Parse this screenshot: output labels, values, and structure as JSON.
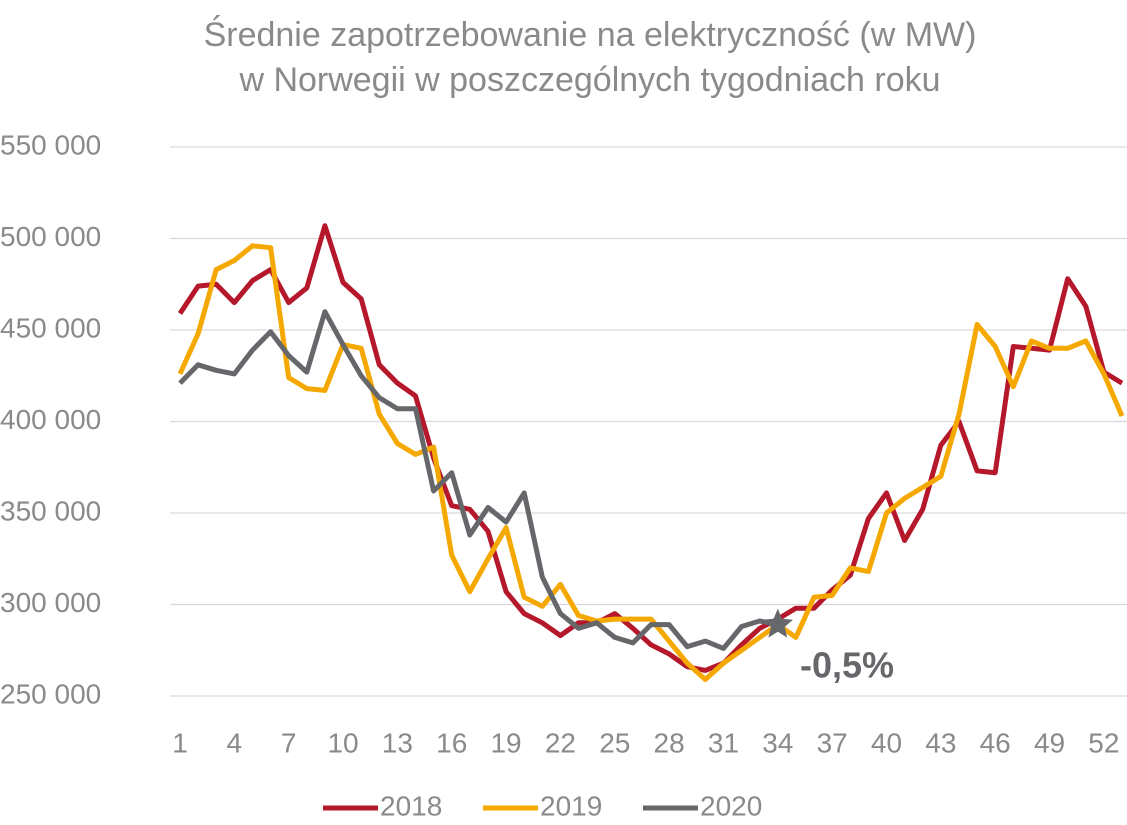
{
  "chart_data": {
    "type": "line",
    "title": [
      "Średnie zapotrzebowanie na elektryczność (w MW)",
      "w Norwegii w poszczególnych tygodniach roku"
    ],
    "categories": [
      1,
      null,
      null,
      4,
      null,
      null,
      7,
      null,
      null,
      10,
      null,
      null,
      13,
      null,
      null,
      16,
      null,
      null,
      19,
      null,
      null,
      22,
      null,
      null,
      25,
      null,
      null,
      28,
      null,
      null,
      31,
      null,
      null,
      34,
      null,
      null,
      37,
      null,
      null,
      40,
      null,
      null,
      43,
      null,
      null,
      46,
      null,
      null,
      49,
      null,
      null,
      52,
      null
    ],
    "series": [
      {
        "name": "2018",
        "color": "#b5172b",
        "values": [
          459000,
          474000,
          475000,
          465000,
          477000,
          483000,
          465000,
          473000,
          507000,
          476000,
          467000,
          431000,
          421000,
          414000,
          380000,
          354000,
          352000,
          340000,
          307000,
          295000,
          290000,
          283000,
          290000,
          290000,
          295000,
          287000,
          278000,
          273000,
          266000,
          264000,
          268000,
          278000,
          287000,
          292000,
          298000,
          298000,
          308000,
          316000,
          347000,
          361000,
          335000,
          352000,
          387000,
          400000,
          373000,
          372000,
          441000,
          440000,
          439000,
          478000,
          463000,
          427000,
          421000
        ]
      },
      {
        "name": "2019",
        "color": "#f5a800",
        "values": [
          426000,
          448000,
          483000,
          488000,
          496000,
          495000,
          424000,
          418000,
          417000,
          442000,
          440000,
          404000,
          388000,
          382000,
          386000,
          327000,
          307000,
          325000,
          342000,
          304000,
          299000,
          311000,
          294000,
          291000,
          292000,
          292000,
          292000,
          280000,
          268000,
          259000,
          268000,
          275000,
          282000,
          289000,
          282000,
          304000,
          305000,
          320000,
          318000,
          350000,
          358000,
          364000,
          370000,
          404000,
          453000,
          441000,
          419000,
          444000,
          440000,
          440000,
          444000,
          426000,
          403000
        ]
      },
      {
        "name": "2020",
        "color": "#65676a",
        "values": [
          421000,
          431000,
          428000,
          426000,
          439000,
          449000,
          436000,
          427000,
          460000,
          442000,
          425000,
          413000,
          407000,
          407000,
          362000,
          372000,
          338000,
          353000,
          345000,
          361000,
          315000,
          295000,
          287000,
          290000,
          282000,
          279000,
          289000,
          289000,
          277000,
          280000,
          276000,
          288000,
          291000,
          289000,
          null,
          null,
          null,
          null,
          null,
          null,
          null,
          null,
          null,
          null,
          null,
          null,
          null,
          null,
          null,
          null,
          null,
          null,
          null
        ]
      }
    ],
    "annotation": "-0,5%",
    "ylim": [
      250000,
      550000
    ],
    "yticks": [
      {
        "value": 250000,
        "label": "250 000"
      },
      {
        "value": 300000,
        "label": "300 000"
      },
      {
        "value": 350000,
        "label": "350 000"
      },
      {
        "value": 400000,
        "label": "400 000"
      },
      {
        "value": 450000,
        "label": "450 000"
      },
      {
        "value": 500000,
        "label": "500 000"
      },
      {
        "value": 550000,
        "label": "550 000"
      }
    ],
    "grid": true,
    "legend": "bottom"
  }
}
